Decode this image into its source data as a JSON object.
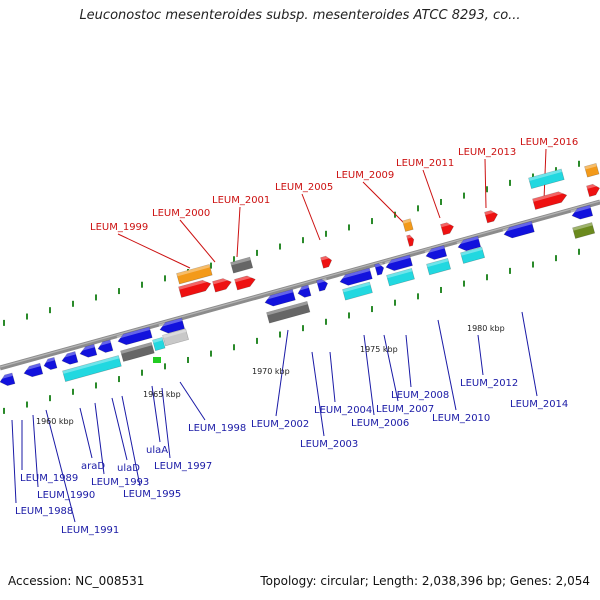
{
  "title": "Leuconostoc mesenteroides subsp. mesenteroides ATCC 8293, co...",
  "footer": {
    "accession": "Accession: NC_008531",
    "summary": "Topology: circular; Length: 2,038,396 bp; Genes: 2,054"
  },
  "colors": {
    "backbone": "#8c8c8c",
    "tick": "#2a8a2a",
    "red_label": "#cc1111",
    "blue_label": "#1a1aa6",
    "blue_gene": "#1212dd",
    "red_gene": "#ee1111",
    "cyan_gene": "#22d8e0",
    "orange_gene": "#f39a1a",
    "gray_gene": "#666666",
    "olive_gene": "#6b8a1e"
  },
  "kbp_labels": [
    "1960 kbp",
    "1965 kbp",
    "1970 kbp",
    "1975 kbp",
    "1980 kbp"
  ],
  "top_labels": [
    "LEUM_1999",
    "LEUM_2000",
    "LEUM_2001",
    "LEUM_2005",
    "LEUM_2009",
    "LEUM_2011",
    "LEUM_2013",
    "LEUM_2016"
  ],
  "bottom_labels": [
    "LEUM_1989",
    "LEUM_1990",
    "LEUM_1988",
    "araD",
    "LEUM_1991",
    "LEUM_1993",
    "ulaD",
    "LEUM_1995",
    "ulaA",
    "LEUM_1997",
    "LEUM_1998",
    "LEUM_2002",
    "LEUM_2003",
    "LEUM_2004",
    "LEUM_2006",
    "LEUM_2007",
    "LEUM_2008",
    "LEUM_2010",
    "LEUM_2012",
    "LEUM_2014"
  ]
}
